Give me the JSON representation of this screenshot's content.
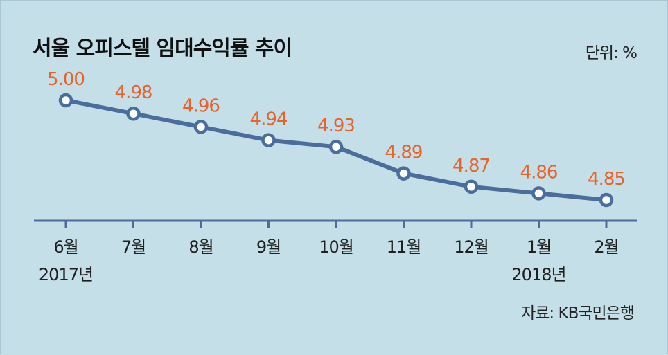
{
  "title": "서울 오피스텔 임대수익률 추이",
  "unit": "단위: %",
  "source": "자료: KB국민은행",
  "colors": {
    "background": "#c5dfe9",
    "line": "#4a6d9c",
    "value_label": "#e8622a",
    "marker_fill": "#ffffff"
  },
  "chart_data": {
    "type": "line",
    "categories": [
      "6월",
      "7월",
      "8월",
      "9월",
      "10월",
      "11월",
      "12월",
      "1월",
      "2월"
    ],
    "year_labels": [
      {
        "category": "6월",
        "label": "2017년"
      },
      {
        "category": "1월",
        "label": "2018년"
      }
    ],
    "series": [
      {
        "values": [
          5.0,
          4.98,
          4.96,
          4.94,
          4.93,
          4.89,
          4.87,
          4.86,
          4.85
        ]
      }
    ],
    "value_labels": [
      "5.00",
      "4.98",
      "4.96",
      "4.94",
      "4.93",
      "4.89",
      "4.87",
      "4.86",
      "4.85"
    ],
    "grid": false,
    "legend": "none"
  }
}
